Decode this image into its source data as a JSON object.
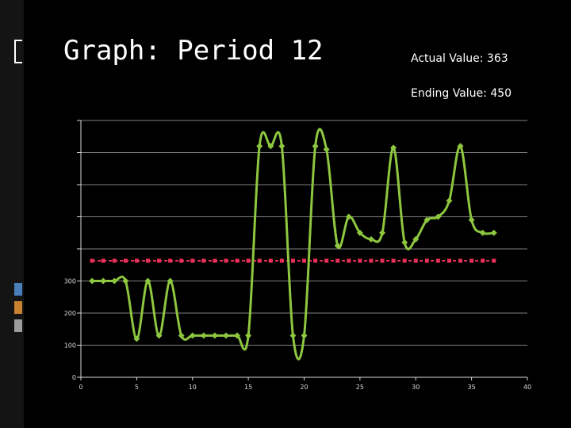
{
  "slide": {
    "title": "Graph: Period 12",
    "actual_value": "Actual Value: 363",
    "ending_value": "Ending Value: 450"
  },
  "colors": {
    "background": "#000000",
    "series_line": "#8dc63f",
    "target_line": "#e8305a",
    "axis": "#d9d9d9",
    "gridline": "#7f7f7f",
    "accent_blue": "#4a7ebb",
    "accent_orange": "#c8812c"
  },
  "chart_data": {
    "type": "line",
    "xlim": [
      0,
      40
    ],
    "ylim": [
      0,
      800
    ],
    "x_ticks": [
      "0",
      "5",
      "10",
      "15",
      "20",
      "25",
      "30",
      "35",
      "40"
    ],
    "y_tick_values": [
      0,
      100,
      200,
      300,
      400,
      500,
      600,
      700,
      800
    ],
    "y_tick_labels": [
      "0",
      "100",
      "200",
      "300",
      "",
      "",
      "",
      "",
      ""
    ],
    "grid": true,
    "series": [
      {
        "color": "#8dc63f",
        "smooth": true,
        "x": [
          1,
          2,
          3,
          4,
          5,
          6,
          7,
          8,
          9,
          10,
          11,
          12,
          13,
          14,
          15,
          16,
          17,
          18,
          19,
          20,
          21,
          22,
          23,
          24,
          25,
          26,
          27,
          28,
          29,
          30,
          31,
          32,
          33,
          34,
          35,
          36,
          37
        ],
        "y": [
          300,
          300,
          300,
          300,
          120,
          300,
          130,
          300,
          130,
          130,
          130,
          130,
          130,
          130,
          130,
          720,
          720,
          720,
          130,
          130,
          720,
          710,
          410,
          500,
          450,
          430,
          450,
          715,
          420,
          430,
          490,
          500,
          550,
          720,
          490,
          450,
          450
        ]
      },
      {
        "color": "#e8305a",
        "smooth": false,
        "x": [
          1,
          2,
          3,
          4,
          5,
          6,
          7,
          8,
          9,
          10,
          11,
          12,
          13,
          14,
          15,
          16,
          17,
          18,
          19,
          20,
          21,
          22,
          23,
          24,
          25,
          26,
          27,
          28,
          29,
          30,
          31,
          32,
          33,
          34,
          35,
          36,
          37
        ],
        "y": [
          363,
          363,
          363,
          363,
          363,
          363,
          363,
          363,
          363,
          363,
          363,
          363,
          363,
          363,
          363,
          363,
          363,
          363,
          363,
          363,
          363,
          363,
          363,
          363,
          363,
          363,
          363,
          363,
          363,
          363,
          363,
          363,
          363,
          363,
          363,
          363,
          363
        ]
      }
    ]
  }
}
